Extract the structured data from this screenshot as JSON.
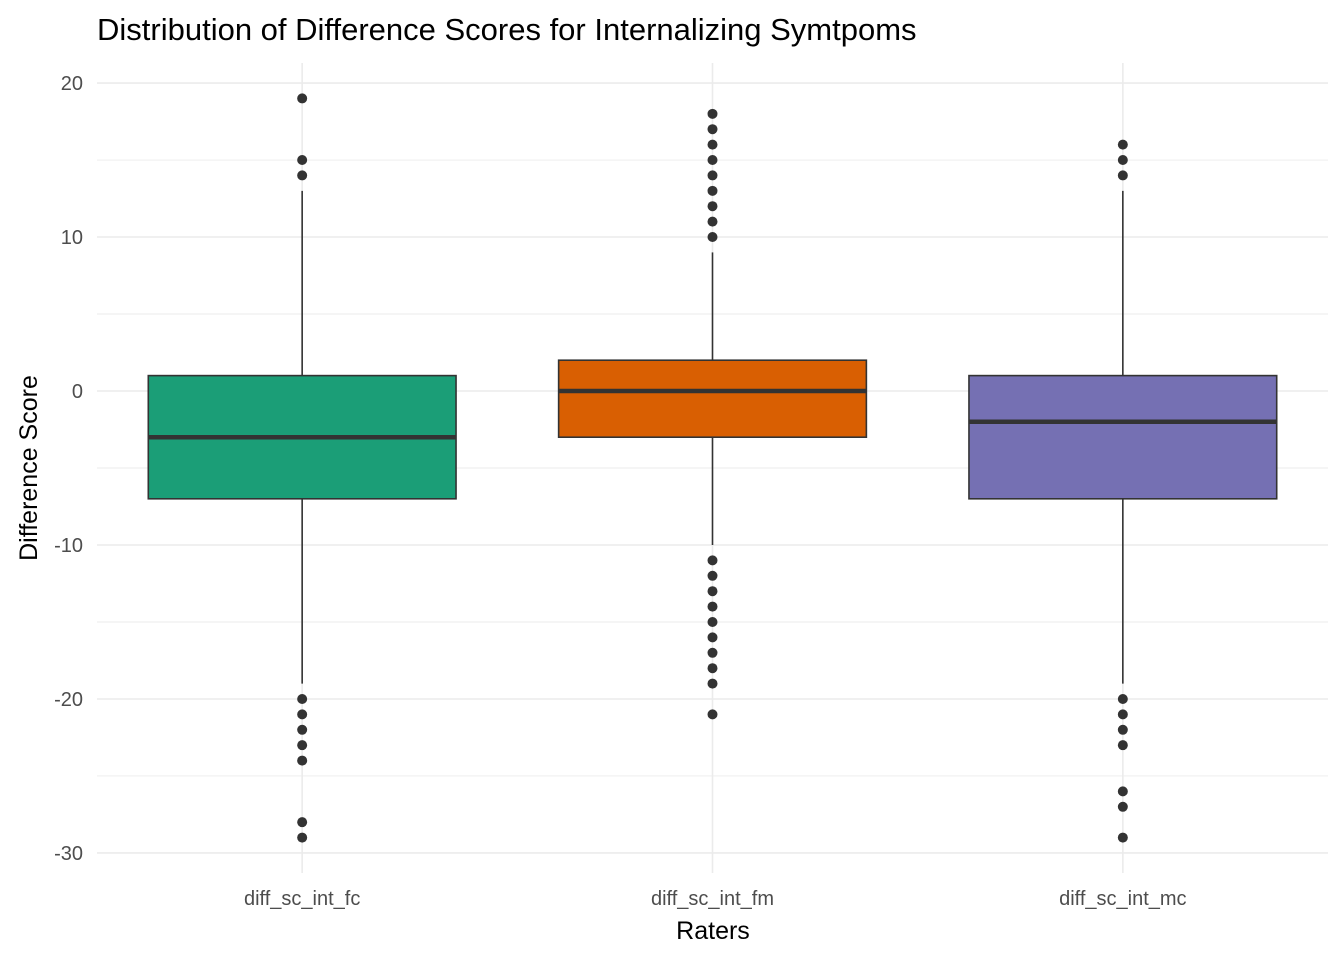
{
  "chart_data": {
    "type": "box",
    "title": "Distribution of Difference Scores for Internalizing Symtpoms",
    "xlabel": "Raters",
    "ylabel": "Difference Score",
    "ylim": [
      -31.3,
      21.3
    ],
    "y_ticks": [
      -30,
      -20,
      -10,
      0,
      10,
      20
    ],
    "y_tick_labels": [
      "-30",
      "-20",
      "-10",
      "0",
      "10",
      "20"
    ],
    "grid": true,
    "categories": [
      "diff_sc_int_fc",
      "diff_sc_int_fm",
      "diff_sc_int_mc"
    ],
    "boxes": [
      {
        "category": "diff_sc_int_fc",
        "color": "#1B9E77",
        "q1": -7,
        "median": -3,
        "q3": 1,
        "whisker_low": -19,
        "whisker_high": 13,
        "outliers": [
          19,
          15,
          14,
          -20,
          -21,
          -22,
          -23,
          -24,
          -28,
          -29
        ]
      },
      {
        "category": "diff_sc_int_fm",
        "color": "#D95F02",
        "q1": -3,
        "median": 0,
        "q3": 2,
        "whisker_low": -10,
        "whisker_high": 9,
        "outliers": [
          18,
          17,
          16,
          15,
          14,
          13,
          12,
          11,
          10,
          -11,
          -12,
          -13,
          -14,
          -15,
          -16,
          -17,
          -18,
          -19,
          -21
        ]
      },
      {
        "category": "diff_sc_int_mc",
        "color": "#7570B3",
        "q1": -7,
        "median": -2,
        "q3": 1,
        "whisker_low": -19,
        "whisker_high": 13,
        "outliers": [
          16,
          15,
          14,
          -20,
          -21,
          -22,
          -23,
          -26,
          -27,
          -29
        ]
      }
    ]
  }
}
